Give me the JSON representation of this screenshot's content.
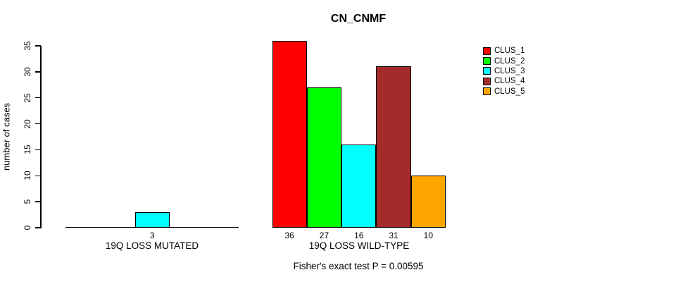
{
  "chart_data": {
    "type": "bar",
    "title": "CN_CNMF",
    "ylabel": "number of cases",
    "xlabel": "",
    "ylim": [
      0,
      35
    ],
    "yticks": [
      0,
      5,
      10,
      15,
      20,
      25,
      30,
      35
    ],
    "grid": false,
    "legend_position": "top-right",
    "categories": [
      "19Q LOSS MUTATED",
      "19Q LOSS WILD-TYPE"
    ],
    "series": [
      {
        "name": "CLUS_1",
        "color": "#FF0000",
        "values": [
          0,
          36
        ]
      },
      {
        "name": "CLUS_2",
        "color": "#00FF00",
        "values": [
          0,
          27
        ]
      },
      {
        "name": "CLUS_3",
        "color": "#00FFFF",
        "values": [
          3,
          16
        ]
      },
      {
        "name": "CLUS_4",
        "color": "#A52A2A",
        "values": [
          0,
          31
        ]
      },
      {
        "name": "CLUS_5",
        "color": "#FFA500",
        "values": [
          0,
          10
        ]
      }
    ],
    "bar_value_labels": {
      "shown_when": "nonzero",
      "visible_labels": [
        "3",
        "36",
        "27",
        "16",
        "31",
        "10"
      ]
    },
    "footnote": "Fisher's exact test P = 0.00595"
  }
}
